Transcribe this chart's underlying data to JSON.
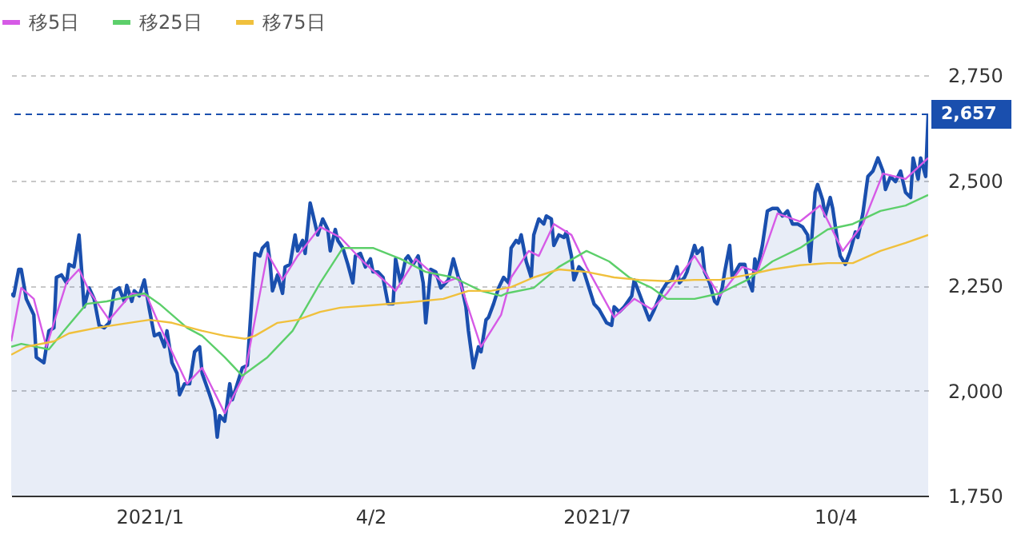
{
  "chart_data": {
    "type": "line",
    "legend": "top left",
    "grid": "y",
    "xlim": [
      "2020-11-10",
      "2021-11-10"
    ],
    "ylim": [
      1750,
      2750
    ],
    "xticks": [
      {
        "value": "2021-01-04",
        "label": "2021/1"
      },
      {
        "value": "2021-04-02",
        "label": "4/2"
      },
      {
        "value": "2021-07-01",
        "label": "2021/7"
      },
      {
        "value": "2021-10-04",
        "label": "10/4"
      }
    ],
    "yticks": [
      {
        "value": 1750,
        "label": "1,750"
      },
      {
        "value": 2000,
        "label": "2,000"
      },
      {
        "value": 2250,
        "label": "2,250"
      },
      {
        "value": 2500,
        "label": "2,500"
      },
      {
        "value": 2750,
        "label": "2,750"
      }
    ],
    "ref_lines": [
      {
        "axis": "y",
        "value": 2657,
        "label": "2,657",
        "color": "#1a4fae",
        "line_style": "dashed"
      }
    ],
    "series": [
      {
        "type": "area",
        "color": "#1a4fae",
        "x": [
          "2020-11-10",
          "2020-11-11",
          "2020-11-13",
          "2020-11-14",
          "2020-11-16",
          "2020-11-19",
          "2020-11-20",
          "2020-11-23",
          "2020-11-25",
          "2020-11-27",
          "2020-11-28",
          "2020-11-30",
          "2020-12-02",
          "2020-12-03",
          "2020-12-05",
          "2020-12-07",
          "2020-12-08",
          "2020-12-09",
          "2020-12-11",
          "2020-12-13",
          "2020-12-15",
          "2020-12-17",
          "2020-12-19",
          "2020-12-21",
          "2020-12-23",
          "2020-12-25",
          "2020-12-26",
          "2020-12-28",
          "2020-12-29",
          "2020-12-31",
          "2021-01-02",
          "2021-01-04",
          "2021-01-06",
          "2021-01-08",
          "2021-01-10",
          "2021-01-11",
          "2021-01-13",
          "2021-01-15",
          "2021-01-16",
          "2021-01-18",
          "2021-01-20",
          "2021-01-22",
          "2021-01-24",
          "2021-01-25",
          "2021-01-28",
          "2021-01-30",
          "2021-01-31",
          "2021-02-01",
          "2021-02-03",
          "2021-02-05",
          "2021-02-06",
          "2021-02-08",
          "2021-02-10",
          "2021-02-12",
          "2021-02-15",
          "2021-02-17",
          "2021-02-18",
          "2021-02-20",
          "2021-02-21",
          "2021-02-22",
          "2021-02-24",
          "2021-02-26",
          "2021-02-27",
          "2021-03-01",
          "2021-03-03",
          "2021-03-04",
          "2021-03-06",
          "2021-03-07",
          "2021-03-09",
          "2021-03-10",
          "2021-03-12",
          "2021-03-14",
          "2021-03-16",
          "2021-03-17",
          "2021-03-19",
          "2021-03-20",
          "2021-03-22",
          "2021-03-24",
          "2021-03-26",
          "2021-03-27",
          "2021-03-29",
          "2021-03-31",
          "2021-04-02",
          "2021-04-03",
          "2021-04-05",
          "2021-04-07",
          "2021-04-09",
          "2021-04-11",
          "2021-04-12",
          "2021-04-14",
          "2021-04-16",
          "2021-04-17",
          "2021-04-19",
          "2021-04-21",
          "2021-04-23",
          "2021-04-24",
          "2021-04-26",
          "2021-04-28",
          "2021-04-30",
          "2021-05-03",
          "2021-05-05",
          "2021-05-07",
          "2021-05-08",
          "2021-05-10",
          "2021-05-11",
          "2021-05-13",
          "2021-05-15",
          "2021-05-16",
          "2021-05-18",
          "2021-05-19",
          "2021-05-21",
          "2021-05-23",
          "2021-05-25",
          "2021-05-27",
          "2021-05-28",
          "2021-05-30",
          "2021-05-31",
          "2021-06-01",
          "2021-06-03",
          "2021-06-05",
          "2021-06-06",
          "2021-06-08",
          "2021-06-10",
          "2021-06-11",
          "2021-06-13",
          "2021-06-14",
          "2021-06-16",
          "2021-06-18",
          "2021-06-19",
          "2021-06-21",
          "2021-06-22",
          "2021-06-24",
          "2021-06-26",
          "2021-06-28",
          "2021-06-30",
          "2021-07-02",
          "2021-07-05",
          "2021-07-07",
          "2021-07-08",
          "2021-07-10",
          "2021-07-12",
          "2021-07-15",
          "2021-07-16",
          "2021-07-18",
          "2021-07-20",
          "2021-07-22",
          "2021-07-24",
          "2021-07-27",
          "2021-07-29",
          "2021-07-31",
          "2021-08-02",
          "2021-08-03",
          "2021-08-05",
          "2021-08-06",
          "2021-08-09",
          "2021-08-10",
          "2021-08-12",
          "2021-08-13",
          "2021-08-15",
          "2021-08-17",
          "2021-08-18",
          "2021-08-20",
          "2021-08-21",
          "2021-08-23",
          "2021-08-24",
          "2021-08-27",
          "2021-08-29",
          "2021-08-30",
          "2021-09-01",
          "2021-09-02",
          "2021-09-03",
          "2021-09-05",
          "2021-09-07",
          "2021-09-09",
          "2021-09-11",
          "2021-09-13",
          "2021-09-15",
          "2021-09-17",
          "2021-09-19",
          "2021-09-21",
          "2021-09-23",
          "2021-09-24",
          "2021-09-26",
          "2021-09-27",
          "2021-09-29",
          "2021-09-30",
          "2021-10-02",
          "2021-10-03",
          "2021-10-05",
          "2021-10-06",
          "2021-10-08",
          "2021-10-10",
          "2021-10-12",
          "2021-10-13",
          "2021-10-15",
          "2021-10-17",
          "2021-10-19",
          "2021-10-21",
          "2021-10-23",
          "2021-10-24",
          "2021-10-26",
          "2021-10-28",
          "2021-10-30",
          "2021-11-01",
          "2021-11-03",
          "2021-11-04",
          "2021-11-06",
          "2021-11-07",
          "2021-11-09",
          "2021-11-10"
        ],
        "values": [
          2231,
          2225,
          2288,
          2288,
          2218,
          2180,
          2079,
          2066,
          2142,
          2149,
          2269,
          2275,
          2256,
          2300,
          2294,
          2370,
          2288,
          2199,
          2244,
          2218,
          2155,
          2149,
          2161,
          2237,
          2244,
          2212,
          2250,
          2212,
          2237,
          2225,
          2263,
          2193,
          2130,
          2136,
          2104,
          2142,
          2066,
          2041,
          1990,
          2016,
          2016,
          2092,
          2104,
          2041,
          1990,
          1953,
          1889,
          1940,
          1927,
          2016,
          1978,
          2016,
          2054,
          2060,
          2326,
          2320,
          2339,
          2351,
          2307,
          2237,
          2275,
          2231,
          2294,
          2300,
          2370,
          2332,
          2357,
          2326,
          2446,
          2421,
          2370,
          2408,
          2383,
          2332,
          2383,
          2357,
          2339,
          2300,
          2256,
          2320,
          2326,
          2294,
          2313,
          2282,
          2282,
          2269,
          2206,
          2206,
          2313,
          2256,
          2313,
          2320,
          2300,
          2320,
          2256,
          2161,
          2288,
          2282,
          2244,
          2263,
          2313,
          2269,
          2256,
          2199,
          2142,
          2054,
          2104,
          2092,
          2168,
          2174,
          2206,
          2244,
          2269,
          2256,
          2339,
          2357,
          2351,
          2370,
          2307,
          2269,
          2370,
          2408,
          2396,
          2415,
          2408,
          2345,
          2370,
          2364,
          2377,
          2320,
          2263,
          2294,
          2282,
          2244,
          2206,
          2193,
          2161,
          2155,
          2199,
          2187,
          2199,
          2225,
          2263,
          2231,
          2199,
          2168,
          2193,
          2237,
          2256,
          2263,
          2294,
          2256,
          2269,
          2282,
          2345,
          2326,
          2339,
          2282,
          2256,
          2212,
          2206,
          2244,
          2282,
          2345,
          2269,
          2300,
          2300,
          2269,
          2237,
          2313,
          2288,
          2345,
          2427,
          2433,
          2433,
          2415,
          2427,
          2396,
          2396,
          2389,
          2370,
          2307,
          2471,
          2490,
          2453,
          2415,
          2459,
          2433,
          2351,
          2320,
          2300,
          2332,
          2377,
          2364,
          2421,
          2509,
          2522,
          2553,
          2522,
          2478,
          2509,
          2497,
          2522,
          2471,
          2459,
          2553,
          2503,
          2553,
          2509,
          2657
        ]
      },
      {
        "name": "移5日",
        "color": "#d65ae6",
        "x": [
          "2020-11-10",
          "2020-11-14",
          "2020-11-19",
          "2020-11-24",
          "2020-12-02",
          "2020-12-07",
          "2020-12-11",
          "2020-12-19",
          "2020-12-28",
          "2021-01-03",
          "2021-01-08",
          "2021-01-19",
          "2021-01-25",
          "2021-02-03",
          "2021-02-11",
          "2021-02-20",
          "2021-02-26",
          "2021-03-04",
          "2021-03-13",
          "2021-03-21",
          "2021-03-30",
          "2021-04-12",
          "2021-04-20",
          "2021-05-01",
          "2021-05-07",
          "2021-05-16",
          "2021-05-24",
          "2021-05-28",
          "2021-06-04",
          "2021-06-08",
          "2021-06-14",
          "2021-06-21",
          "2021-06-27",
          "2021-07-08",
          "2021-07-16",
          "2021-07-23",
          "2021-07-29",
          "2021-08-09",
          "2021-08-19",
          "2021-08-28",
          "2021-09-03",
          "2021-09-11",
          "2021-09-20",
          "2021-09-28",
          "2021-10-07",
          "2021-10-15",
          "2021-10-23",
          "2021-11-01",
          "2021-11-10"
        ],
        "values": [
          2117,
          2244,
          2218,
          2104,
          2256,
          2288,
          2237,
          2168,
          2231,
          2225,
          2155,
          2016,
          2054,
          1946,
          2041,
          2326,
          2263,
          2320,
          2389,
          2364,
          2307,
          2237,
          2313,
          2256,
          2269,
          2104,
          2180,
          2269,
          2332,
          2320,
          2396,
          2370,
          2294,
          2174,
          2218,
          2193,
          2231,
          2320,
          2225,
          2294,
          2282,
          2421,
          2402,
          2440,
          2332,
          2396,
          2516,
          2503,
          2553
        ]
      },
      {
        "name": "移25日",
        "color": "#5ccf6a",
        "x": [
          "2020-11-10",
          "2020-11-14",
          "2020-11-25",
          "2020-12-01",
          "2020-12-10",
          "2020-12-18",
          "2021-01-02",
          "2021-01-08",
          "2021-01-19",
          "2021-01-25",
          "2021-02-03",
          "2021-02-10",
          "2021-02-20",
          "2021-03-02",
          "2021-03-13",
          "2021-03-22",
          "2021-04-03",
          "2021-04-14",
          "2021-04-24",
          "2021-05-05",
          "2021-05-16",
          "2021-05-24",
          "2021-05-26",
          "2021-06-06",
          "2021-06-16",
          "2021-06-27",
          "2021-07-06",
          "2021-07-14",
          "2021-07-23",
          "2021-07-29",
          "2021-08-09",
          "2021-08-19",
          "2021-08-30",
          "2021-09-09",
          "2021-09-20",
          "2021-10-01",
          "2021-10-11",
          "2021-10-22",
          "2021-11-01",
          "2021-11-10"
        ],
        "values": [
          2104,
          2111,
          2098,
          2142,
          2206,
          2212,
          2231,
          2206,
          2149,
          2130,
          2079,
          2035,
          2079,
          2142,
          2256,
          2339,
          2339,
          2313,
          2282,
          2269,
          2237,
          2225,
          2231,
          2244,
          2294,
          2332,
          2307,
          2269,
          2244,
          2218,
          2218,
          2231,
          2263,
          2307,
          2339,
          2383,
          2396,
          2427,
          2440,
          2465
        ]
      },
      {
        "name": "移75日",
        "color": "#f0c03c",
        "x": [
          "2020-11-10",
          "2020-11-16",
          "2020-11-27",
          "2020-12-03",
          "2020-12-14",
          "2020-12-27",
          "2021-01-04",
          "2021-01-13",
          "2021-01-25",
          "2021-02-03",
          "2021-02-11",
          "2021-02-15",
          "2021-02-24",
          "2021-03-04",
          "2021-03-13",
          "2021-03-21",
          "2021-04-03",
          "2021-04-16",
          "2021-05-01",
          "2021-05-11",
          "2021-05-20",
          "2021-05-28",
          "2021-06-06",
          "2021-06-16",
          "2021-06-27",
          "2021-07-08",
          "2021-07-18",
          "2021-07-29",
          "2021-08-09",
          "2021-08-19",
          "2021-08-30",
          "2021-09-09",
          "2021-09-20",
          "2021-10-01",
          "2021-10-11",
          "2021-10-22",
          "2021-11-01",
          "2021-11-10"
        ],
        "values": [
          2085,
          2104,
          2117,
          2136,
          2149,
          2161,
          2168,
          2161,
          2142,
          2130,
          2123,
          2130,
          2161,
          2168,
          2187,
          2197,
          2203,
          2209,
          2218,
          2237,
          2237,
          2246,
          2269,
          2288,
          2282,
          2269,
          2263,
          2260,
          2263,
          2263,
          2275,
          2288,
          2298,
          2303,
          2303,
          2332,
          2351,
          2370
        ]
      }
    ]
  }
}
